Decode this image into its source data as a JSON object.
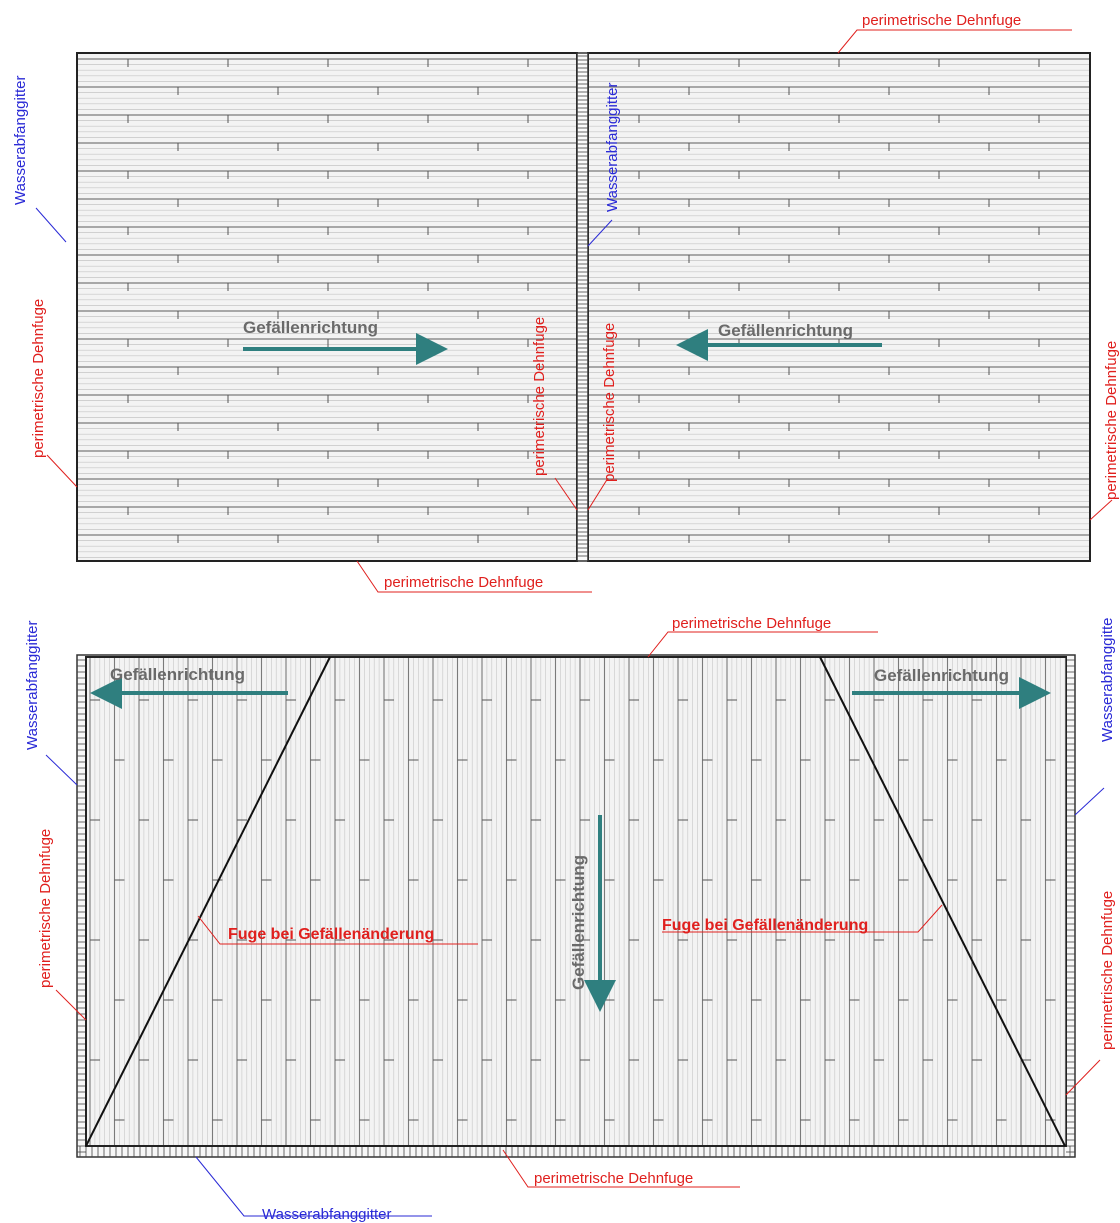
{
  "labels": {
    "perimeter_joint": "perimetrische Dehnfuge",
    "water_grate": "Wasserabfanggitter",
    "water_grate_cut": "Wasserabfanggitte",
    "slope_direction": "Gefällenrichtung",
    "slope_change_joint": "Fuge bei Gefällenänderung"
  },
  "colors": {
    "annotation_red": "#e0201e",
    "annotation_blue": "#2a2ad6",
    "arrow_teal": "#2f7f7f",
    "outline": "#222222",
    "board_line": "#b8b8b8"
  }
}
